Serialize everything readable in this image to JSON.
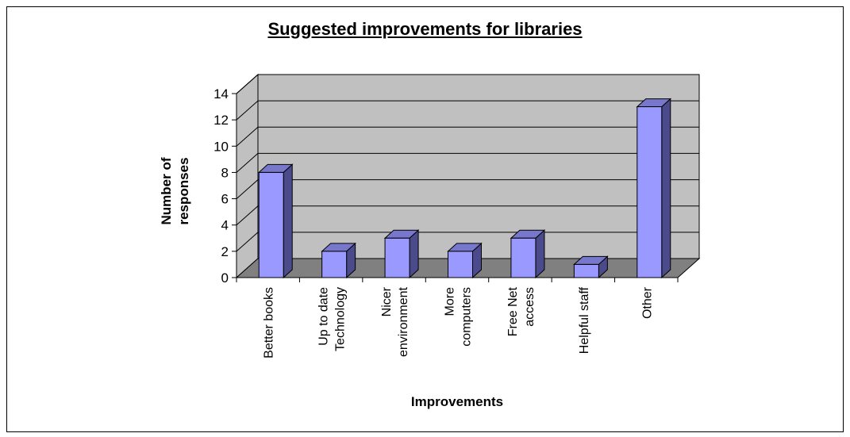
{
  "chart_data": {
    "type": "bar",
    "title": "Suggested improvements for libraries",
    "xlabel": "Improvements",
    "ylabel": [
      "Number of",
      "responses"
    ],
    "categories": [
      [
        "Better books"
      ],
      [
        "Up to date",
        "Technology"
      ],
      [
        "Nicer",
        "environment"
      ],
      [
        "More",
        "computers"
      ],
      [
        "Free Net",
        "access"
      ],
      [
        "Helpful staff"
      ],
      [
        "Other"
      ]
    ],
    "values": [
      8,
      2,
      3,
      2,
      3,
      1,
      13
    ],
    "ylim": [
      0,
      14
    ],
    "yticks": [
      0,
      2,
      4,
      6,
      8,
      10,
      12,
      14
    ],
    "grid": true,
    "colors": {
      "bar_front": "#9999ff",
      "bar_side": "#4b4b8c",
      "bar_top": "#7777cc",
      "wall": "#c0c0c0",
      "floor": "#808080"
    }
  }
}
